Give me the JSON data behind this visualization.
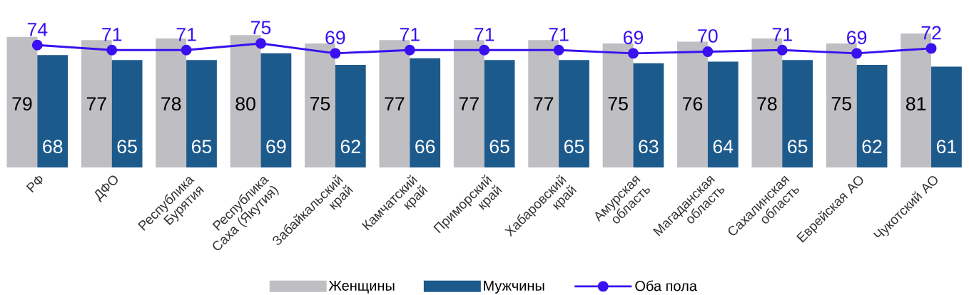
{
  "chart_data": {
    "type": "bar",
    "categories": [
      "РФ",
      "ДФО",
      "Республика Бурятия",
      "Республика Саха (Якутия)",
      "Забайкальский край",
      "Камчатский край",
      "Приморский край",
      "Хабаровский край",
      "Амурская область",
      "Магаданская область",
      "Сахалинская область",
      "Еврейская АО",
      "Чукотский АО"
    ],
    "series": [
      {
        "name": "Женщины",
        "color": "#bfbfc3",
        "values": [
          79,
          77,
          78,
          80,
          75,
          77,
          77,
          77,
          75,
          76,
          78,
          75,
          81
        ]
      },
      {
        "name": "Мужчины",
        "color": "#1d5a8c",
        "values": [
          68,
          65,
          65,
          69,
          62,
          66,
          65,
          65,
          63,
          64,
          65,
          62,
          61
        ]
      },
      {
        "name": "Оба пола",
        "type": "line",
        "color": "#3a10f0",
        "marker": "circle",
        "values": [
          74,
          71,
          71,
          75,
          69,
          71,
          71,
          71,
          69,
          70,
          71,
          69,
          72
        ]
      }
    ],
    "data_labels": true,
    "legend": "bottom"
  }
}
